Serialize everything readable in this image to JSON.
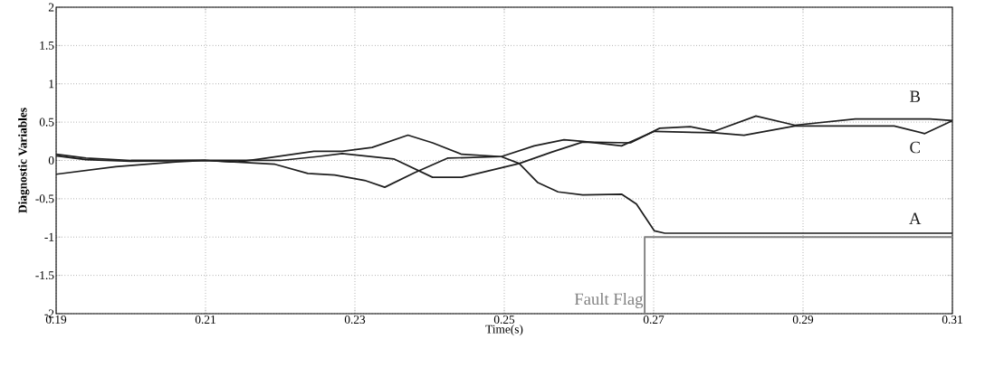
{
  "chart_data": {
    "type": "line",
    "xlabel": "Time(s)",
    "ylabel": "Diagnostic Variables",
    "xlim": [
      0.19,
      0.31
    ],
    "ylim": [
      -2,
      2
    ],
    "xticks": [
      0.19,
      0.21,
      0.23,
      0.25,
      0.27,
      0.29,
      0.31
    ],
    "yticks": [
      -2,
      -1.5,
      -1,
      -0.5,
      0,
      0.5,
      1,
      1.5,
      2
    ],
    "grid": true,
    "line_style": "solid",
    "marker": "none",
    "series": [
      {
        "name": "A",
        "color": "#1e1e1e",
        "x": [
          0.19,
          0.194,
          0.2,
          0.21,
          0.2143,
          0.2173,
          0.2245,
          0.2283,
          0.2323,
          0.2371,
          0.2404,
          0.2443,
          0.2496,
          0.252,
          0.2545,
          0.2572,
          0.2605,
          0.2657,
          0.2677,
          0.2701,
          0.2715,
          0.31
        ],
        "values": [
          0.06,
          0.01,
          -0.01,
          0.0,
          -0.02,
          0.02,
          0.12,
          0.12,
          0.17,
          0.33,
          0.23,
          0.08,
          0.05,
          -0.04,
          -0.29,
          -0.41,
          -0.45,
          -0.44,
          -0.57,
          -0.92,
          -0.95,
          -0.95
        ]
      },
      {
        "name": "B",
        "color": "#1e1e1e",
        "x": [
          0.19,
          0.194,
          0.2,
          0.21,
          0.22,
          0.225,
          0.2283,
          0.2352,
          0.2404,
          0.2443,
          0.252,
          0.2564,
          0.2605,
          0.2669,
          0.2708,
          0.2749,
          0.2781,
          0.2837,
          0.2889,
          0.297,
          0.307,
          0.31
        ],
        "values": [
          0.08,
          0.03,
          0.0,
          0.0,
          0.0,
          0.05,
          0.09,
          0.02,
          -0.22,
          -0.22,
          -0.04,
          0.11,
          0.24,
          0.23,
          0.42,
          0.44,
          0.38,
          0.58,
          0.46,
          0.54,
          0.54,
          0.52
        ]
      },
      {
        "name": "C",
        "color": "#1e1e1e",
        "x": [
          0.19,
          0.198,
          0.206,
          0.21,
          0.2193,
          0.2237,
          0.2273,
          0.2313,
          0.234,
          0.238,
          0.2424,
          0.2496,
          0.254,
          0.258,
          0.2605,
          0.2657,
          0.2701,
          0.2781,
          0.2821,
          0.2889,
          0.3022,
          0.3063,
          0.31
        ],
        "values": [
          -0.18,
          -0.08,
          -0.02,
          0.0,
          -0.05,
          -0.17,
          -0.19,
          -0.26,
          -0.35,
          -0.16,
          0.03,
          0.05,
          0.19,
          0.27,
          0.25,
          0.19,
          0.38,
          0.36,
          0.33,
          0.45,
          0.45,
          0.35,
          0.52
        ]
      },
      {
        "name": "Fault Flag",
        "color": "#808080",
        "x": [
          0.2688,
          0.2688,
          0.31
        ],
        "values": [
          -2,
          -1,
          -1
        ]
      }
    ]
  }
}
